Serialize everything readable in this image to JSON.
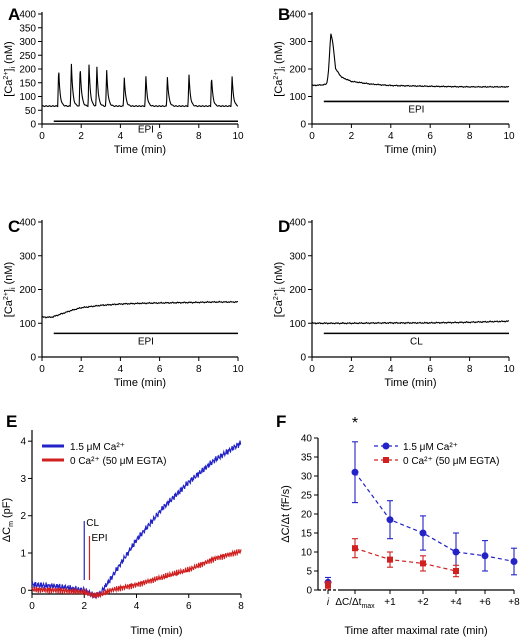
{
  "chart_data": [
    {
      "panel": "A",
      "type": "line",
      "xlabel": "Time (min)",
      "ylabel": "[Ca2+]i (nM)",
      "xlim": [
        0,
        10
      ],
      "ylim": [
        0,
        400
      ],
      "xticks": [
        "0",
        "2",
        "4",
        "6",
        "8",
        "10"
      ],
      "yticks": [
        "0",
        "50",
        "100",
        "150",
        "200",
        "250",
        "300",
        "350",
        "400"
      ],
      "bar_label": "EPI",
      "bar_range": [
        0.6,
        10
      ],
      "baseline": 65,
      "spike_times": [
        0.85,
        1.5,
        1.95,
        2.4,
        2.8,
        3.3,
        4.2,
        5.3,
        6.4,
        7.5,
        8.65,
        9.7
      ],
      "spike_peaks": [
        205,
        220,
        212,
        215,
        208,
        195,
        170,
        172,
        172,
        178,
        175,
        172
      ]
    },
    {
      "panel": "B",
      "type": "line",
      "xlabel": "Time (min)",
      "ylabel": "[Ca2+]i (nM)",
      "xlim": [
        0,
        10
      ],
      "ylim": [
        0,
        400
      ],
      "xticks": [
        "0",
        "2",
        "4",
        "6",
        "8",
        "10"
      ],
      "yticks": [
        "0",
        "100",
        "200",
        "300",
        "400"
      ],
      "bar_label": "EPI",
      "bar_range": [
        0.6,
        10
      ],
      "x": [
        0,
        0.5,
        0.75,
        0.85,
        0.95,
        1.05,
        1.2,
        1.5,
        2,
        3,
        4,
        6,
        8,
        10
      ],
      "y": [
        140,
        142,
        145,
        200,
        330,
        300,
        200,
        170,
        155,
        145,
        140,
        137,
        135,
        135
      ]
    },
    {
      "panel": "C",
      "type": "line",
      "xlabel": "Time (min)",
      "ylabel": "[Ca2+]i (nM)",
      "xlim": [
        0,
        10
      ],
      "ylim": [
        0,
        400
      ],
      "xticks": [
        "0",
        "2",
        "4",
        "6",
        "8",
        "10"
      ],
      "yticks": [
        "0",
        "100",
        "200",
        "300",
        "400"
      ],
      "bar_label": "EPI",
      "bar_range": [
        0.6,
        10
      ],
      "x": [
        0,
        0.5,
        1,
        1.5,
        2,
        3,
        4,
        5,
        6,
        7,
        8,
        9,
        10
      ],
      "y": [
        118,
        118,
        128,
        138,
        146,
        153,
        157,
        159,
        160,
        161,
        162,
        163,
        163
      ]
    },
    {
      "panel": "D",
      "type": "line",
      "xlabel": "Time (min)",
      "ylabel": "[Ca2+]i (nM)",
      "xlim": [
        0,
        10
      ],
      "ylim": [
        0,
        400
      ],
      "xticks": [
        "0",
        "2",
        "4",
        "6",
        "8",
        "10"
      ],
      "yticks": [
        "0",
        "100",
        "200",
        "300",
        "400"
      ],
      "bar_label": "CL",
      "bar_range": [
        0.6,
        10
      ],
      "x": [
        0,
        2,
        4,
        6,
        8,
        10
      ],
      "y": [
        100,
        100,
        101,
        101,
        103,
        106
      ]
    },
    {
      "panel": "E",
      "type": "line",
      "xlabel": "Time (min)",
      "ylabel": "ΔCm (pF)",
      "xlim": [
        0,
        8
      ],
      "ylim": [
        -0.1,
        4.3
      ],
      "xticks": [
        "0",
        "2",
        "4",
        "6",
        "8"
      ],
      "yticks": [
        "0",
        "1",
        "2",
        "3",
        "4"
      ],
      "annotations": [
        {
          "text": "CL",
          "x": 2.0
        },
        {
          "text": "EPI",
          "x": 2.2
        }
      ],
      "series": [
        {
          "name": "1.5 μM Ca²⁺",
          "color": "#2323c8",
          "x": [
            0,
            1,
            2,
            2.4,
            2.6,
            3,
            4,
            5,
            6,
            7,
            8
          ],
          "y": [
            0.15,
            0.1,
            0.0,
            -0.15,
            -0.1,
            0.3,
            1.35,
            2.2,
            2.9,
            3.5,
            3.95
          ]
        },
        {
          "name": "0 Ca²⁺ (50 μM EGTA)",
          "color": "#d02020",
          "x": [
            0,
            1,
            2,
            2.4,
            2.7,
            3,
            4,
            5,
            6,
            7,
            8
          ],
          "y": [
            0.02,
            0.0,
            -0.05,
            -0.15,
            -0.1,
            0.0,
            0.15,
            0.35,
            0.55,
            0.85,
            1.05
          ]
        }
      ]
    },
    {
      "panel": "F",
      "type": "scatter",
      "xlabel": "Time after maximal rate (min)",
      "ylabel": "ΔC/Δt (fF/s)",
      "ylim": [
        0,
        40
      ],
      "categories": [
        "i",
        "ΔC/Δtmax",
        "+1",
        "+2",
        "+4",
        "+6",
        "+8"
      ],
      "yticks": [
        "0",
        "5",
        "10",
        "15",
        "20",
        "25",
        "30",
        "35",
        "40"
      ],
      "significance": "*",
      "series": [
        {
          "name": "1.5 μM Ca²⁺",
          "color": "#2323c8",
          "values": [
            2,
            31,
            18.5,
            15,
            10,
            9,
            7.5
          ],
          "errors": [
            1.3,
            8,
            5,
            4.5,
            5,
            4,
            3.5
          ]
        },
        {
          "name": "0 Ca²⁺ (50 μM EGTA)",
          "color": "#d02020",
          "values": [
            1.3,
            11,
            8,
            7,
            5,
            null,
            null
          ],
          "errors": [
            1,
            2.5,
            2,
            2,
            1.5,
            null,
            null
          ]
        }
      ]
    }
  ]
}
